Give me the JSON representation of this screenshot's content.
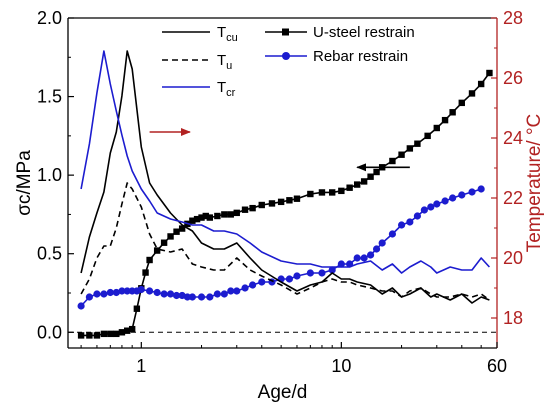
{
  "chart_data": {
    "type": "line",
    "title": "",
    "xlabel": "Age/d",
    "xscale": "log",
    "xlim": [
      0.43,
      60
    ],
    "x_ticks": [
      1,
      10,
      60
    ],
    "x_tick_labels": [
      "1",
      "10",
      "60"
    ],
    "ylabel_left": "σc/MPa",
    "ylim_left": [
      -0.1,
      2.0
    ],
    "y_ticks_left": [
      "0.0",
      "0.5",
      "1.0",
      "1.5",
      "2.0"
    ],
    "y_tick_values_left": [
      0.0,
      0.5,
      1.0,
      1.5,
      2.0
    ],
    "ylabel_right": "Temperature/ °C",
    "ylim_right": [
      17,
      28
    ],
    "y_ticks_right": [
      "18",
      "20",
      "22",
      "24",
      "26",
      "28"
    ],
    "y_tick_values_right": [
      18,
      20,
      22,
      24,
      26,
      28
    ],
    "right_axis_color": "#b22222",
    "zero_reference_line": 0.0,
    "legend_left": [
      "T",
      "T",
      "T"
    ],
    "legend_left_subscripts": [
      "cu",
      "u",
      "cr"
    ],
    "legend_right": [
      "U-steel restrain",
      "Rebar restrain"
    ],
    "series": [
      {
        "name": "U-steel restrain",
        "axis": "left",
        "color": "#000000",
        "marker": "square",
        "dash": "solid",
        "x": [
          0.5,
          0.55,
          0.6,
          0.65,
          0.7,
          0.75,
          0.8,
          0.85,
          0.9,
          0.95,
          1.0,
          1.05,
          1.1,
          1.2,
          1.3,
          1.4,
          1.5,
          1.6,
          1.7,
          1.8,
          1.9,
          2.0,
          2.1,
          2.2,
          2.4,
          2.6,
          2.8,
          3.0,
          3.3,
          3.6,
          4.0,
          4.5,
          5.0,
          5.5,
          6.0,
          7.0,
          8.0,
          9.0,
          10,
          11,
          12,
          13,
          14,
          15,
          16,
          18,
          20,
          22,
          24,
          27,
          30,
          33,
          36,
          40,
          45,
          50,
          55
        ],
        "values": [
          -0.02,
          -0.02,
          -0.02,
          -0.01,
          -0.01,
          -0.01,
          0.0,
          0.01,
          0.02,
          0.15,
          0.28,
          0.38,
          0.46,
          0.52,
          0.57,
          0.61,
          0.64,
          0.66,
          0.69,
          0.71,
          0.72,
          0.73,
          0.74,
          0.73,
          0.74,
          0.75,
          0.75,
          0.76,
          0.78,
          0.79,
          0.81,
          0.82,
          0.83,
          0.84,
          0.85,
          0.88,
          0.89,
          0.89,
          0.9,
          0.92,
          0.94,
          0.96,
          0.99,
          1.02,
          1.05,
          1.09,
          1.13,
          1.17,
          1.2,
          1.25,
          1.3,
          1.35,
          1.4,
          1.46,
          1.52,
          1.58,
          1.65
        ]
      },
      {
        "name": "Rebar restrain",
        "axis": "right",
        "color": "#1c1ccf",
        "marker": "circle",
        "dash": "solid",
        "x": [
          0.5,
          0.55,
          0.6,
          0.65,
          0.7,
          0.75,
          0.8,
          0.85,
          0.9,
          0.95,
          1.0,
          1.1,
          1.2,
          1.3,
          1.4,
          1.5,
          1.6,
          1.7,
          1.8,
          2.0,
          2.2,
          2.4,
          2.6,
          2.8,
          3.0,
          3.3,
          3.6,
          4.0,
          4.5,
          5.0,
          5.5,
          6.0,
          7.0,
          8.0,
          9.0,
          10,
          11,
          12,
          13,
          14,
          15,
          16,
          18,
          20,
          22,
          24,
          26,
          28,
          30,
          33,
          36,
          40,
          45,
          50
        ],
        "values": [
          18.4,
          18.7,
          18.8,
          18.8,
          18.85,
          18.85,
          18.9,
          18.9,
          18.9,
          18.9,
          18.95,
          18.9,
          18.85,
          18.8,
          18.8,
          18.75,
          18.75,
          18.7,
          18.7,
          18.7,
          18.7,
          18.8,
          18.8,
          18.9,
          18.9,
          19.0,
          19.1,
          19.2,
          19.2,
          19.3,
          19.3,
          19.4,
          19.5,
          19.5,
          19.6,
          19.8,
          19.8,
          20.0,
          20.0,
          20.1,
          20.3,
          20.5,
          20.8,
          21.1,
          21.2,
          21.4,
          21.6,
          21.7,
          21.8,
          21.9,
          22.0,
          22.1,
          22.2,
          22.3
        ]
      },
      {
        "name": "T",
        "axis": "right",
        "color": "#000000",
        "marker": "none",
        "dash": "solid",
        "x": [
          0.5,
          0.55,
          0.6,
          0.65,
          0.7,
          0.75,
          0.8,
          0.85,
          0.9,
          1.0,
          1.1,
          1.2,
          1.4,
          1.6,
          1.8,
          2.0,
          2.3,
          2.6,
          3.0,
          3.5,
          4.0,
          5.0,
          6.0,
          7.0,
          8.0,
          9.0,
          10,
          11,
          12,
          14,
          16,
          18,
          20,
          22,
          25,
          28,
          30,
          35,
          40,
          45,
          50,
          55
        ],
        "values": [
          19.5,
          20.7,
          21.5,
          22.2,
          23.5,
          24.2,
          25.4,
          26.9,
          26.3,
          23.7,
          22.5,
          22.1,
          21.5,
          21.1,
          20.9,
          20.5,
          20.3,
          20.3,
          20.5,
          20.0,
          19.6,
          19.2,
          18.9,
          19.1,
          19.2,
          19.5,
          19.3,
          19.3,
          19.2,
          19.1,
          18.8,
          19.0,
          18.7,
          18.8,
          19.0,
          18.7,
          18.8,
          18.6,
          18.8,
          18.5,
          18.7,
          18.6
        ]
      },
      {
        "name": "T",
        "axis": "right",
        "color": "#000000",
        "marker": "none",
        "dash": "dashed",
        "x": [
          0.5,
          0.55,
          0.6,
          0.65,
          0.7,
          0.75,
          0.8,
          0.85,
          0.9,
          1.0,
          1.1,
          1.2,
          1.4,
          1.6,
          1.8,
          2.0,
          2.3,
          2.6,
          3.0,
          3.5,
          4.0,
          5.0,
          6.0,
          7.0,
          8.0,
          9.0,
          10,
          11,
          12,
          14,
          16,
          18,
          20,
          22,
          25,
          28,
          30,
          35,
          40,
          45,
          50,
          55
        ],
        "values": [
          18.8,
          19.3,
          20.0,
          20.4,
          20.4,
          21.0,
          21.8,
          22.5,
          22.3,
          21.7,
          20.8,
          20.3,
          20.2,
          20.3,
          19.8,
          19.7,
          19.6,
          19.6,
          20.0,
          19.6,
          19.4,
          19.1,
          18.8,
          19.0,
          19.2,
          19.3,
          19.2,
          19.2,
          19.1,
          19.0,
          18.9,
          18.9,
          18.7,
          18.9,
          19.0,
          18.8,
          18.7,
          18.7,
          18.8,
          18.7,
          18.8,
          18.6
        ]
      },
      {
        "name": "T",
        "axis": "right",
        "color": "#1c1ccf",
        "marker": "none",
        "dash": "solid",
        "x": [
          0.5,
          0.55,
          0.6,
          0.65,
          0.7,
          0.75,
          0.8,
          0.85,
          0.9,
          1.0,
          1.1,
          1.2,
          1.4,
          1.6,
          1.8,
          2.0,
          2.3,
          2.6,
          3.0,
          3.5,
          4.0,
          5.0,
          6.0,
          7.0,
          8.0,
          9.0,
          10,
          11,
          12,
          14,
          16,
          18,
          20,
          22,
          25,
          28,
          30,
          35,
          40,
          45,
          50,
          55
        ],
        "values": [
          22.3,
          23.8,
          25.5,
          26.9,
          25.8,
          24.9,
          24.1,
          23.4,
          22.9,
          22.3,
          21.9,
          21.5,
          21.3,
          21.2,
          21.1,
          21.1,
          20.9,
          20.9,
          20.8,
          20.5,
          20.2,
          19.9,
          19.8,
          19.8,
          19.7,
          19.7,
          19.7,
          19.7,
          19.8,
          19.9,
          19.6,
          19.8,
          19.5,
          19.7,
          19.9,
          19.7,
          19.5,
          19.7,
          19.6,
          19.6,
          20.0,
          19.7
        ]
      }
    ],
    "annotations": [
      {
        "type": "arrow",
        "direction": "left",
        "color": "#000000",
        "x_from": 22,
        "x_to": 12,
        "value": 1.05,
        "axis": "left"
      },
      {
        "type": "arrow",
        "direction": "right",
        "color": "#b22222",
        "x_from": 1.1,
        "x_to": 1.75,
        "value": 24.2,
        "axis": "right"
      }
    ]
  }
}
